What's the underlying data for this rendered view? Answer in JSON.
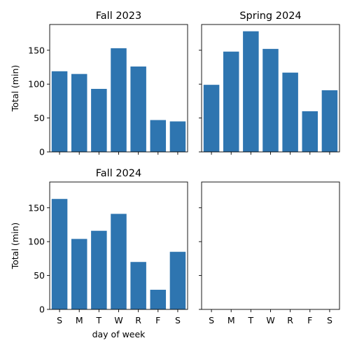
{
  "chart_data": {
    "type": "bar",
    "xlabel": "day of week",
    "ylabel": "Total (min)",
    "ylim": [
      0,
      188
    ],
    "yticks": [
      0,
      50,
      100,
      150
    ],
    "categories": [
      "S",
      "M",
      "T",
      "W",
      "R",
      "F",
      "S"
    ],
    "color": "#2e75b0",
    "grid": false,
    "panels": [
      {
        "title": "Fall 2023",
        "values": [
          119,
          115,
          93,
          153,
          126,
          47,
          45
        ]
      },
      {
        "title": "Spring 2024",
        "values": [
          99,
          148,
          178,
          152,
          117,
          60,
          91
        ]
      },
      {
        "title": "Fall 2024",
        "values": [
          163,
          104,
          116,
          141,
          70,
          29,
          85
        ]
      },
      {
        "title": "",
        "values": []
      }
    ]
  }
}
